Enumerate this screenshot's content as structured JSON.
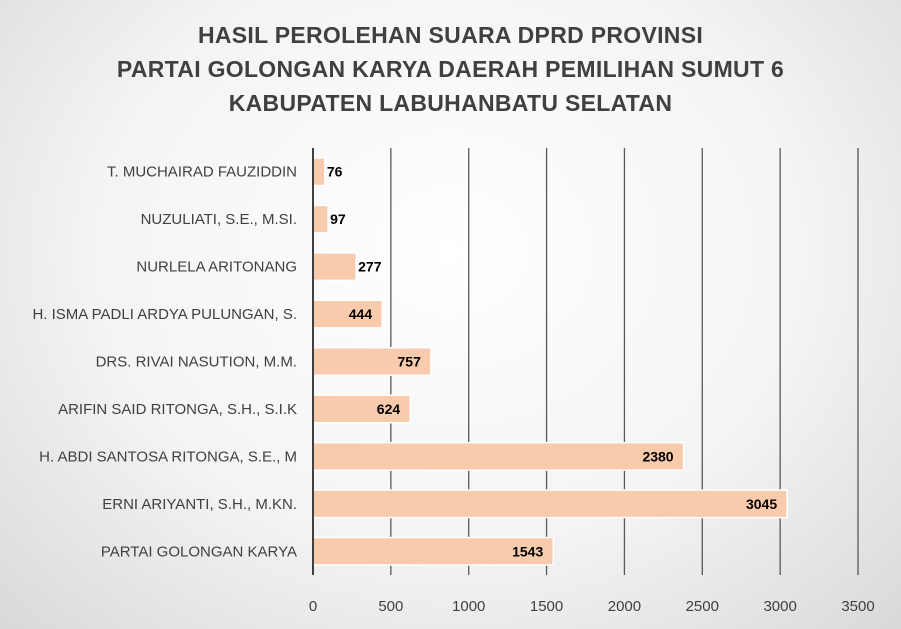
{
  "chart_data": {
    "type": "bar",
    "orientation": "horizontal",
    "title_lines": [
      "HASIL PEROLEHAN SUARA DPRD PROVINSI",
      "PARTAI GOLONGAN KARYA DAERAH PEMILIHAN SUMUT 6",
      "KABUPATEN LABUHANBATU SELATAN"
    ],
    "categories": [
      "T. MUCHAIRAD FAUZIDDIN",
      "NUZULIATI, S.E., M.SI.",
      "NURLELA ARITONANG",
      "H. ISMA PADLI ARDYA PULUNGAN, S.",
      "DRS. RIVAI NASUTION, M.M.",
      "ARIFIN SAID RITONGA, S.H., S.I.K",
      "H. ABDI SANTOSA RITONGA, S.E., M",
      "ERNI ARIYANTI, S.H., M.KN.",
      "PARTAI GOLONGAN KARYA"
    ],
    "values": [
      76,
      97,
      277,
      444,
      757,
      624,
      2380,
      3045,
      1543
    ],
    "xlim": [
      0,
      3500
    ],
    "xticks": [
      0,
      500,
      1000,
      1500,
      2000,
      2500,
      3000,
      3500
    ],
    "grid": "vertical",
    "legend": "none",
    "colors": {
      "bar_fill": "#f8cbad",
      "bar_stroke": "#ffffff",
      "grid": "#595959",
      "axis": "#404040"
    }
  }
}
